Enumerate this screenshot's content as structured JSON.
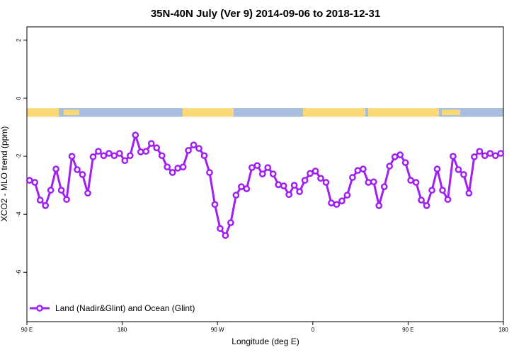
{
  "chart_data": {
    "type": "line",
    "title": "35N-40N July (Ver 9)   2014-09-06 to 2018-12-31",
    "x_label": "Longitude (deg E)",
    "y_label": "XCO2 - MLO trend (ppm)",
    "x": [
      92.5,
      97.5,
      102.5,
      107.5,
      112.5,
      117.5,
      122.5,
      127.5,
      132.5,
      137.5,
      142.5,
      147.5,
      152.5,
      157.5,
      162.5,
      167.5,
      172.5,
      177.5,
      182.5,
      187.5,
      192.5,
      197.5,
      202.5,
      207.5,
      212.5,
      217.5,
      222.5,
      227.5,
      232.5,
      237.5,
      242.5,
      247.5,
      252.5,
      257.5,
      262.5,
      267.5,
      272.5,
      277.5,
      282.5,
      287.5,
      292.5,
      297.5,
      302.5,
      307.5,
      312.5,
      317.5,
      322.5,
      327.5,
      332.5,
      337.5,
      342.5,
      347.5,
      352.5,
      357.5,
      362.5,
      367.5,
      372.5,
      377.5,
      382.5,
      387.5,
      392.5,
      397.5,
      402.5,
      407.5,
      412.5,
      417.5,
      422.5,
      427.5,
      432.5,
      437.5,
      442.5,
      447.5,
      452.5,
      457.5,
      462.5,
      467.5,
      472.5,
      477.5,
      482.5,
      487.5,
      492.5,
      497.5,
      502.5,
      507.5,
      512.5,
      517.5,
      522.5,
      527.5,
      532.5,
      537.5
    ],
    "series": [
      {
        "name": "Land (Nadir&Glint) and Ocean (Glint)",
        "color": "#a020f0",
        "values": [
          -2.83,
          -2.9,
          -3.51,
          -3.7,
          -3.17,
          -2.44,
          -3.17,
          -3.49,
          -2.0,
          -2.46,
          -2.63,
          -3.27,
          -2.02,
          -1.83,
          -1.98,
          -1.9,
          -1.98,
          -1.9,
          -2.15,
          -1.98,
          -1.27,
          -1.85,
          -1.83,
          -1.56,
          -1.71,
          -1.98,
          -2.37,
          -2.56,
          -2.41,
          -2.37,
          -1.8,
          -1.61,
          -1.73,
          -1.98,
          -2.56,
          -3.66,
          -4.49,
          -4.73,
          -4.29,
          -3.34,
          -3.05,
          -3.12,
          -2.39,
          -2.32,
          -2.61,
          -2.39,
          -2.61,
          -2.98,
          -3.02,
          -3.32,
          -3.0,
          -3.22,
          -2.83,
          -2.59,
          -2.51,
          -2.76,
          -2.9,
          -3.61,
          -3.66,
          -3.54,
          -3.34,
          -2.73,
          -2.49,
          -2.44,
          -2.9,
          -2.88,
          -3.7,
          -3.05,
          -2.34,
          -2.02,
          -1.95,
          -2.22,
          -2.83,
          -2.9,
          -3.51,
          -3.7,
          -3.17,
          -2.44,
          -3.17,
          -3.49,
          -2.0,
          -2.46,
          -2.63,
          -3.27,
          -2.02,
          -1.83,
          -1.98,
          -1.9,
          -1.98,
          -1.9
        ]
      }
    ],
    "xlim": [
      90,
      540
    ],
    "xticks": [
      {
        "value": 90,
        "label": "90 E"
      },
      180,
      {
        "value": 270,
        "label": "90 W"
      },
      {
        "value": 360,
        "label": "0"
      },
      {
        "value": 450,
        "label": "90 E"
      },
      {
        "value": 540,
        "label": "180"
      }
    ],
    "ylim": [
      -7.7,
      2.46
    ],
    "yticks": [
      -6,
      -4,
      -2,
      0,
      2
    ],
    "legend": "bottom-left"
  }
}
